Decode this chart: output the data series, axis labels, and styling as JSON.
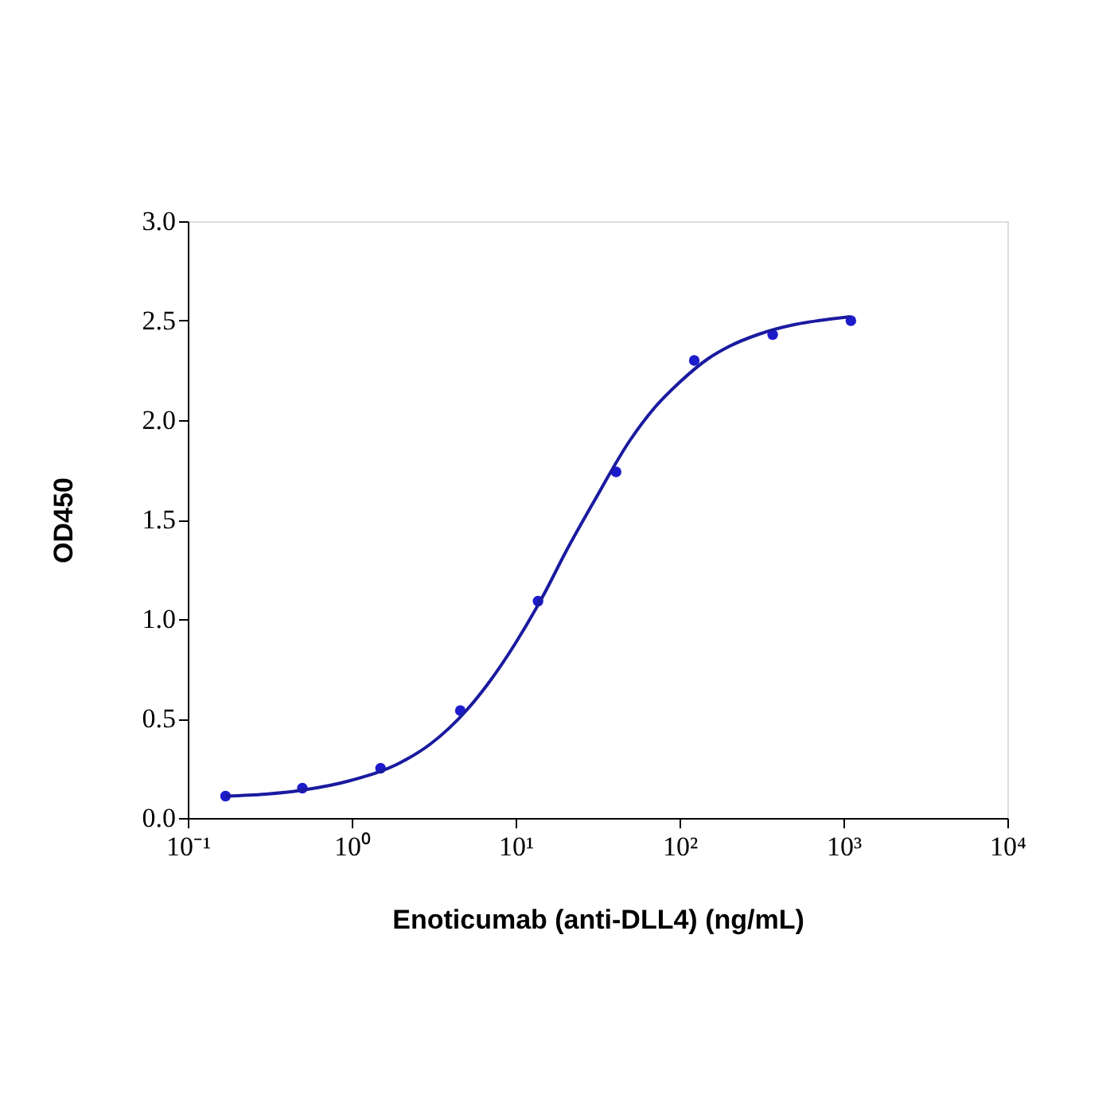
{
  "chart_data": {
    "type": "scatter",
    "xlabel": "Enoticumab (anti-DLL4) (ng/mL)",
    "ylabel": "OD450",
    "log": "x",
    "grid": false,
    "xlim": [
      0.1,
      10000
    ],
    "xticks": [
      {
        "value": 0.1,
        "label": "10⁻¹"
      },
      {
        "value": 1,
        "label": "10⁰"
      },
      {
        "value": 10,
        "label": "10¹"
      },
      {
        "value": 100,
        "label": "10²"
      },
      {
        "value": 1000,
        "label": "10³"
      },
      {
        "value": 10000,
        "label": "10⁴"
      }
    ],
    "ylim": [
      0,
      3
    ],
    "yticks": [
      {
        "value": 0,
        "label": "0.0"
      },
      {
        "value": 0.5,
        "label": "0.5"
      },
      {
        "value": 1,
        "label": "1.0"
      },
      {
        "value": 1.5,
        "label": "1.5"
      },
      {
        "value": 2,
        "label": "2.0"
      },
      {
        "value": 2.5,
        "label": "2.5"
      },
      {
        "value": 3,
        "label": "3.0"
      }
    ],
    "series": [
      {
        "color": "#1c1ccc",
        "marker": "circle",
        "x": [
          0.17,
          0.5,
          1.5,
          4.6,
          13.7,
          41,
          123,
          370,
          1110
        ],
        "values": [
          0.11,
          0.15,
          0.25,
          0.54,
          1.09,
          1.74,
          2.3,
          2.43,
          2.5
        ]
      },
      {
        "type": "line",
        "color": "#1a1aa0",
        "marker": "none",
        "line_style": "solid",
        "x": [
          0.17,
          0.3,
          0.5,
          1,
          2,
          3,
          5,
          7,
          10,
          15,
          20,
          30,
          50,
          70,
          100,
          150,
          200,
          300,
          500,
          700,
          1100
        ],
        "values": [
          0.11,
          0.12,
          0.14,
          0.19,
          0.28,
          0.37,
          0.54,
          0.69,
          0.88,
          1.13,
          1.33,
          1.59,
          1.9,
          2.06,
          2.19,
          2.31,
          2.37,
          2.43,
          2.48,
          2.5,
          2.52
        ]
      }
    ]
  }
}
